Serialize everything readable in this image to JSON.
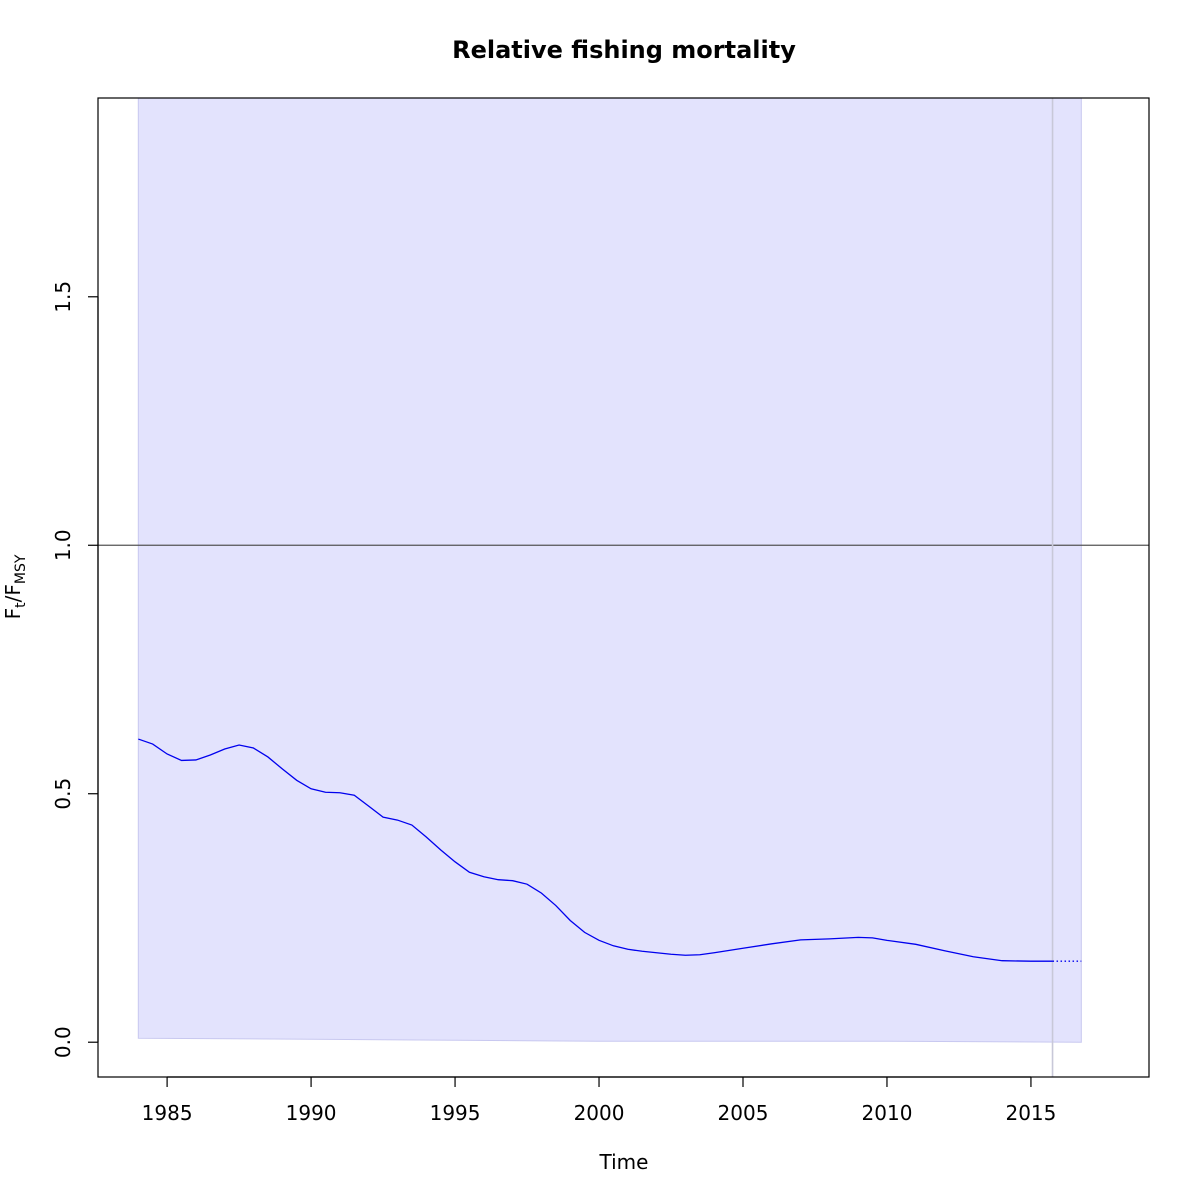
{
  "chart_data": {
    "type": "line",
    "title": "Relative fishing mortality",
    "xlabel": "Time",
    "ylabel": {
      "main": "F",
      "sub1": "t",
      "slash": "/F",
      "sub2": "MSY"
    },
    "xlim": [
      1982.6,
      2019.1
    ],
    "ylim": [
      -0.07,
      1.9
    ],
    "x_ticks": [
      1985,
      1990,
      1995,
      2000,
      2005,
      2010,
      2015
    ],
    "y_ticks": [
      0.0,
      0.5,
      1.0,
      1.5
    ],
    "y_tick_labels": [
      "0.0",
      "0.5",
      "1.0",
      "1.5"
    ],
    "reference_line": 1.0,
    "last_observation": 2015.75,
    "series": [
      {
        "type": "line",
        "color": "#0000ee",
        "style": "solid",
        "x": [
          1984.0,
          1984.5,
          1985.0,
          1985.5,
          1986.0,
          1986.5,
          1987.0,
          1987.5,
          1988.0,
          1988.5,
          1989.0,
          1989.5,
          1990.0,
          1990.5,
          1991.0,
          1991.5,
          1992.0,
          1992.5,
          1993.0,
          1993.5,
          1994.0,
          1994.5,
          1995.0,
          1995.5,
          1996.0,
          1996.5,
          1997.0,
          1997.5,
          1998.0,
          1998.5,
          1999.0,
          1999.5,
          2000.0,
          2000.5,
          2001.0,
          2001.5,
          2002.0,
          2002.5,
          2003.0,
          2003.5,
          2004.0,
          2005.0,
          2006.0,
          2007.0,
          2008.0,
          2009.0,
          2009.5,
          2010.0,
          2011.0,
          2012.0,
          2013.0,
          2014.0,
          2015.0,
          2015.75
        ],
        "y": [
          0.61,
          0.6,
          0.58,
          0.567,
          0.568,
          0.578,
          0.59,
          0.598,
          0.592,
          0.574,
          0.55,
          0.527,
          0.51,
          0.503,
          0.502,
          0.497,
          0.475,
          0.453,
          0.447,
          0.437,
          0.413,
          0.387,
          0.363,
          0.342,
          0.333,
          0.327,
          0.325,
          0.318,
          0.3,
          0.275,
          0.245,
          0.221,
          0.205,
          0.194,
          0.187,
          0.183,
          0.18,
          0.177,
          0.175,
          0.176,
          0.18,
          0.189,
          0.198,
          0.206,
          0.208,
          0.211,
          0.21,
          0.205,
          0.197,
          0.184,
          0.172,
          0.164,
          0.163,
          0.163
        ]
      },
      {
        "type": "line",
        "color": "#0000ee",
        "style": "dotted",
        "x": [
          2015.75,
          2016.75
        ],
        "y": [
          0.163,
          0.163
        ]
      }
    ],
    "band": {
      "fill": "#e3e3fd",
      "edge": "#c8c8f0",
      "x": [
        1984.0,
        1990.0,
        1995.0,
        2000.0,
        2005.0,
        2010.0,
        2016.75
      ],
      "lower": [
        0.008,
        0.006,
        0.004,
        0.002,
        0.002,
        0.002,
        0.0
      ],
      "upper": [
        1.9,
        1.9,
        1.9,
        1.9,
        1.9,
        1.9,
        1.9
      ]
    },
    "grid": false,
    "legend": "none"
  }
}
